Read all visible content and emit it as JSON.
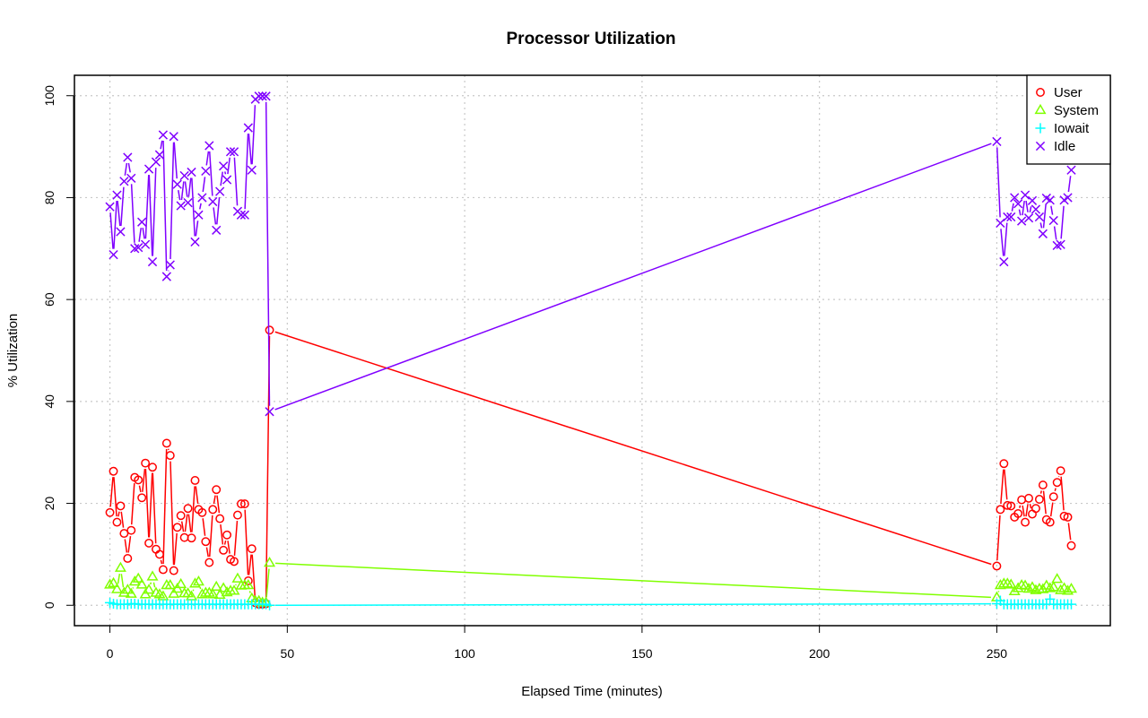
{
  "chart_data": {
    "type": "line",
    "title": "Processor Utilization",
    "xlabel": "Elapsed Time (minutes)",
    "ylabel": "% Utilization",
    "xlim": [
      -10,
      282
    ],
    "ylim": [
      -4,
      104
    ],
    "xticks": [
      0,
      50,
      100,
      150,
      200,
      250
    ],
    "yticks": [
      0,
      20,
      40,
      60,
      80,
      100
    ],
    "grid": true,
    "legend_position": "top-right",
    "x": [
      0,
      1,
      2,
      3,
      4,
      5,
      6,
      7,
      8,
      9,
      10,
      11,
      12,
      13,
      14,
      15,
      16,
      17,
      18,
      19,
      20,
      21,
      22,
      23,
      24,
      25,
      26,
      27,
      28,
      29,
      30,
      31,
      32,
      33,
      34,
      35,
      36,
      37,
      38,
      39,
      40,
      41,
      42,
      43,
      44,
      45,
      250,
      251,
      252,
      253,
      254,
      255,
      256,
      257,
      258,
      259,
      260,
      261,
      262,
      263,
      264,
      265,
      266,
      267,
      268,
      269,
      270,
      271
    ],
    "series": [
      {
        "name": "User",
        "color": "#ff0000",
        "marker": "circle",
        "values": [
          18.2,
          26.3,
          16.3,
          19.5,
          14.1,
          9.2,
          14.7,
          25.1,
          24.6,
          21.1,
          27.9,
          12.2,
          27.1,
          11.0,
          10.0,
          7.0,
          31.8,
          29.4,
          6.8,
          15.3,
          17.6,
          13.3,
          19.0,
          13.2,
          24.5,
          18.8,
          18.2,
          12.5,
          8.4,
          18.8,
          22.7,
          17.0,
          10.8,
          13.8,
          9.0,
          8.6,
          17.7,
          19.9,
          19.9,
          4.8,
          11.1,
          0.5,
          0.2,
          0.2,
          0.3,
          54.0,
          7.7,
          18.8,
          27.8,
          19.6,
          19.5,
          17.3,
          18.0,
          20.7,
          16.3,
          21.0,
          17.9,
          19.0,
          20.8,
          23.6,
          16.8,
          16.3,
          21.3,
          24.1,
          26.4,
          17.5,
          17.3,
          11.7
        ]
      },
      {
        "name": "System",
        "color": "#80ff00",
        "marker": "triangle",
        "values": [
          4.0,
          4.3,
          3.1,
          7.3,
          2.4,
          3.0,
          2.2,
          4.6,
          5.2,
          4.0,
          2.1,
          3.0,
          5.6,
          2.4,
          2.1,
          1.7,
          3.9,
          3.9,
          2.2,
          3.2,
          4.1,
          2.3,
          2.3,
          1.7,
          4.2,
          4.6,
          2.1,
          2.4,
          2.4,
          2.1,
          3.6,
          2.0,
          3.3,
          2.5,
          2.8,
          2.8,
          5.2,
          3.8,
          3.9,
          3.9,
          1.3,
          0.8,
          0.8,
          0.5,
          0.5,
          8.3,
          1.5,
          3.9,
          4.2,
          4.2,
          4.0,
          2.7,
          3.3,
          3.9,
          3.8,
          3.2,
          3.5,
          2.9,
          3.2,
          3.1,
          3.8,
          3.3,
          3.5,
          5.1,
          2.9,
          3.3,
          2.8,
          3.2
        ]
      },
      {
        "name": "Iowait",
        "color": "#00ffff",
        "marker": "plus",
        "values": [
          0.5,
          0.3,
          0.2,
          0.2,
          0.2,
          0.2,
          0.3,
          0.3,
          0.2,
          0.2,
          0.2,
          0.2,
          0.2,
          0.2,
          0.2,
          0.2,
          0.2,
          0.2,
          0.2,
          0.2,
          0.2,
          0.2,
          0.2,
          0.2,
          0.2,
          0.2,
          0.2,
          0.2,
          0.2,
          0.2,
          0.2,
          0.2,
          0.2,
          0.2,
          0.2,
          0.2,
          0.2,
          0.2,
          0.2,
          0.2,
          0.2,
          0.2,
          0.2,
          0.2,
          0.2,
          0.0,
          0.3,
          0.9,
          0.2,
          0.2,
          0.2,
          0.2,
          0.2,
          0.2,
          0.2,
          0.2,
          0.2,
          0.2,
          0.2,
          0.2,
          0.2,
          1.2,
          0.2,
          0.2,
          0.2,
          0.2,
          0.2,
          0.2
        ]
      },
      {
        "name": "Idle",
        "color": "#8000ff",
        "marker": "cross",
        "values": [
          78.2,
          68.8,
          80.5,
          73.3,
          83.2,
          87.9,
          83.8,
          70.0,
          70.2,
          75.2,
          70.8,
          85.6,
          67.4,
          87.0,
          88.4,
          92.3,
          64.5,
          66.8,
          92.0,
          82.6,
          78.4,
          84.3,
          79.0,
          85.0,
          71.3,
          76.6,
          80.0,
          85.2,
          90.2,
          79.2,
          73.6,
          81.2,
          86.2,
          83.5,
          89.0,
          89.0,
          77.3,
          76.6,
          76.6,
          93.7,
          85.4,
          99.3,
          99.9,
          99.9,
          99.9,
          38.0,
          91.0,
          75.0,
          67.4,
          76.2,
          76.2,
          80.0,
          78.8,
          75.4,
          80.5,
          76.0,
          79.4,
          77.7,
          76.2,
          72.9,
          79.9,
          79.5,
          75.5,
          70.6,
          70.8,
          79.5,
          80.0,
          85.4
        ]
      }
    ]
  }
}
